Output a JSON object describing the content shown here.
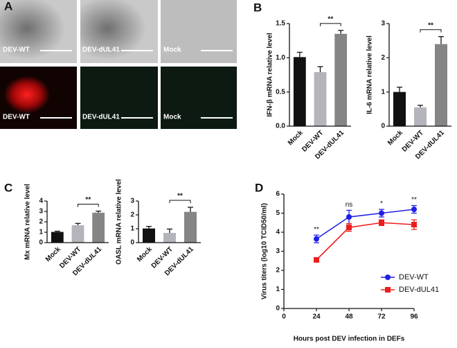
{
  "panel_labels": [
    "A",
    "B",
    "C",
    "D"
  ],
  "images": {
    "captions": [
      "DEV-WT",
      "DEV-dUL41",
      "Mock",
      "DEV-WT",
      "DEV-dUL41",
      "Mock"
    ]
  },
  "chart_data": [
    {
      "type": "bar",
      "y_label": "IFN-β mRNA relative level",
      "categories": [
        "Mock",
        "DEV-WT",
        "DEV-dUL41"
      ],
      "values": [
        1.01,
        0.79,
        1.35
      ],
      "errors": [
        0.07,
        0.08,
        0.05
      ],
      "colors": [
        "#111111",
        "#b4b4bc",
        "#858585"
      ],
      "ylim": [
        0,
        1.5
      ],
      "yticks": [
        {
          "value": 0,
          "label": "0.0"
        },
        {
          "value": 0.5,
          "label": "0.5"
        },
        {
          "value": 1,
          "label": "1.0"
        },
        {
          "value": 1.5,
          "label": "1.5"
        }
      ],
      "significance": [
        {
          "from": 1,
          "to": 2,
          "label": "**"
        }
      ]
    },
    {
      "type": "bar",
      "y_label": "IL-6 mRNA relative level",
      "categories": [
        "Mock",
        "DEV-WT",
        "DEV-dUL41"
      ],
      "values": [
        1.0,
        0.55,
        2.4
      ],
      "errors": [
        0.14,
        0.06,
        0.22
      ],
      "colors": [
        "#111111",
        "#b4b4bc",
        "#858585"
      ],
      "ylim": [
        0,
        3
      ],
      "yticks": [
        0,
        1,
        2,
        3
      ],
      "significance": [
        {
          "from": 1,
          "to": 2,
          "label": "**"
        }
      ]
    },
    {
      "type": "bar",
      "y_label": "Mx mRNA relative level",
      "categories": [
        "Mock",
        "DEV-WT",
        "DEV-dUL41"
      ],
      "values": [
        1.03,
        1.67,
        2.88
      ],
      "errors": [
        0.07,
        0.18,
        0.15
      ],
      "colors": [
        "#111111",
        "#b4b4bc",
        "#858585"
      ],
      "ylim": [
        0,
        4
      ],
      "yticks": [
        0,
        1,
        2,
        3,
        4
      ],
      "significance": [
        {
          "from": 1,
          "to": 2,
          "label": "**"
        }
      ]
    },
    {
      "type": "bar",
      "y_label": "OASL mRNA relative level",
      "categories": [
        "Mock",
        "DEV-WT",
        "DEV-dUL41"
      ],
      "values": [
        1.02,
        0.7,
        2.22
      ],
      "errors": [
        0.15,
        0.28,
        0.33
      ],
      "colors": [
        "#111111",
        "#b4b4bc",
        "#858585"
      ],
      "ylim": [
        0,
        3
      ],
      "yticks": [
        0,
        1,
        2,
        3
      ],
      "significance": [
        {
          "from": 1,
          "to": 2,
          "label": "**"
        }
      ]
    },
    {
      "type": "line",
      "x_label": "Hours post DEV infection in DEFs",
      "y_label": "Virus titers (log10 TCID50/ml)",
      "x": [
        24,
        48,
        72,
        96
      ],
      "series": [
        {
          "name": "DEV-WT",
          "color": "#1f1fe6",
          "marker": "circle",
          "values": [
            3.65,
            4.8,
            5.0,
            5.2
          ],
          "errors": [
            0.2,
            0.35,
            0.2,
            0.2
          ]
        },
        {
          "name": "DEV-dUL41",
          "color": "#ee1c1c",
          "marker": "square",
          "values": [
            2.55,
            4.25,
            4.5,
            4.4
          ],
          "errors": [
            0.1,
            0.2,
            0.15,
            0.25
          ]
        }
      ],
      "xlim": [
        0,
        96
      ],
      "xticks": [
        0,
        24,
        48,
        72,
        96
      ],
      "ylim": [
        0,
        6
      ],
      "yticks": [
        0,
        1,
        2,
        3,
        4,
        5,
        6
      ],
      "annotations": [
        {
          "x": 24,
          "text": "**"
        },
        {
          "x": 48,
          "text": "ns"
        },
        {
          "x": 72,
          "text": "*"
        },
        {
          "x": 96,
          "text": "**"
        }
      ]
    }
  ]
}
